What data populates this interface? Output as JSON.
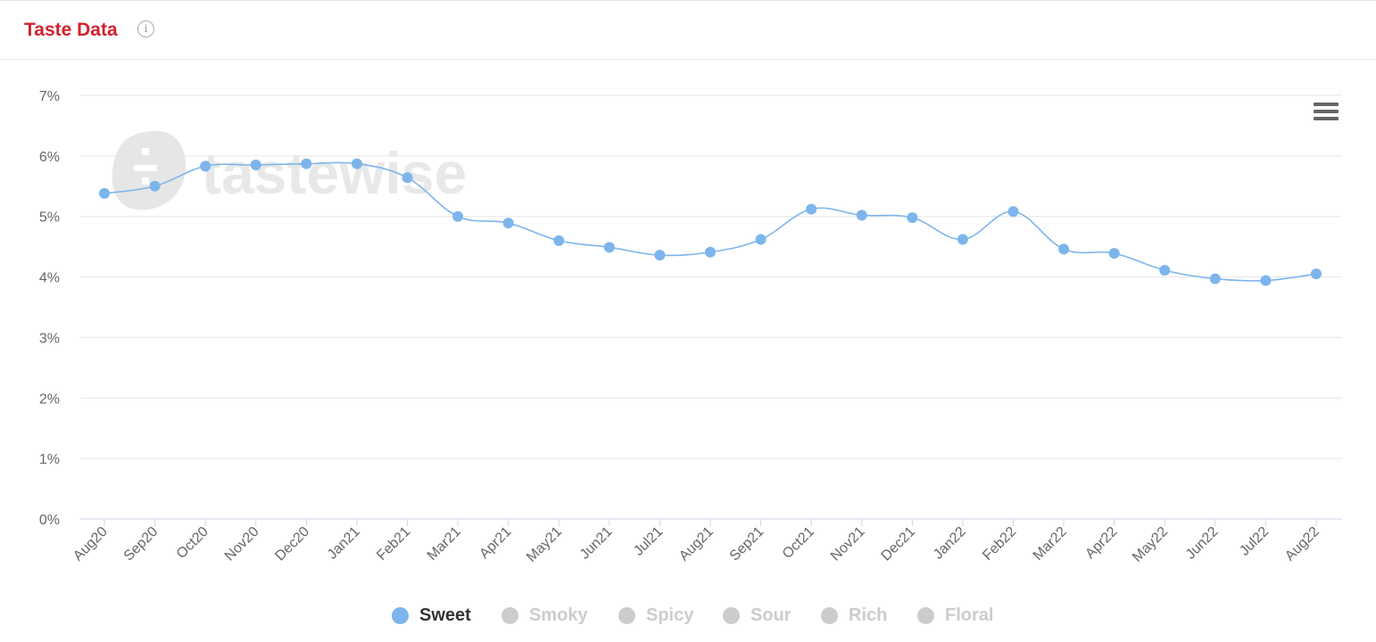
{
  "header": {
    "title": "Taste Data",
    "info_glyph": "i"
  },
  "colors": {
    "title": "#d0222f",
    "series": "#7cb5ec",
    "inactive": "#cccccc",
    "grid": "#e6e6e6",
    "axis_text": "#666666"
  },
  "watermark": "tastewise",
  "chart_data": {
    "type": "line",
    "title": "",
    "xlabel": "",
    "ylabel": "",
    "ylim": [
      0,
      7
    ],
    "y_ticks": [
      "0%",
      "1%",
      "2%",
      "3%",
      "4%",
      "5%",
      "6%",
      "7%"
    ],
    "y_tick_values": [
      0,
      1,
      2,
      3,
      4,
      5,
      6,
      7
    ],
    "categories": [
      "Aug20",
      "Sep20",
      "Oct20",
      "Nov20",
      "Dec20",
      "Jan21",
      "Feb21",
      "Mar21",
      "Apr21",
      "May21",
      "Jun21",
      "Jul21",
      "Aug21",
      "Sep21",
      "Oct21",
      "Nov21",
      "Dec21",
      "Jan22",
      "Feb22",
      "Mar22",
      "Apr22",
      "May22",
      "Jun22",
      "Jul22",
      "Aug22"
    ],
    "series": [
      {
        "name": "Sweet",
        "values": [
          5.38,
          5.5,
          5.83,
          5.85,
          5.87,
          5.87,
          5.64,
          5.0,
          4.89,
          4.6,
          4.49,
          4.36,
          4.41,
          4.62,
          5.12,
          5.02,
          4.98,
          4.62,
          5.08,
          4.46,
          4.39,
          4.11,
          3.97,
          3.94,
          4.05
        ],
        "visible": true
      }
    ],
    "grid": true,
    "legend_position": "bottom-center",
    "legend": [
      {
        "name": "Sweet",
        "active": true
      },
      {
        "name": "Smoky",
        "active": false
      },
      {
        "name": "Spicy",
        "active": false
      },
      {
        "name": "Sour",
        "active": false
      },
      {
        "name": "Rich",
        "active": false
      },
      {
        "name": "Floral",
        "active": false
      }
    ]
  }
}
